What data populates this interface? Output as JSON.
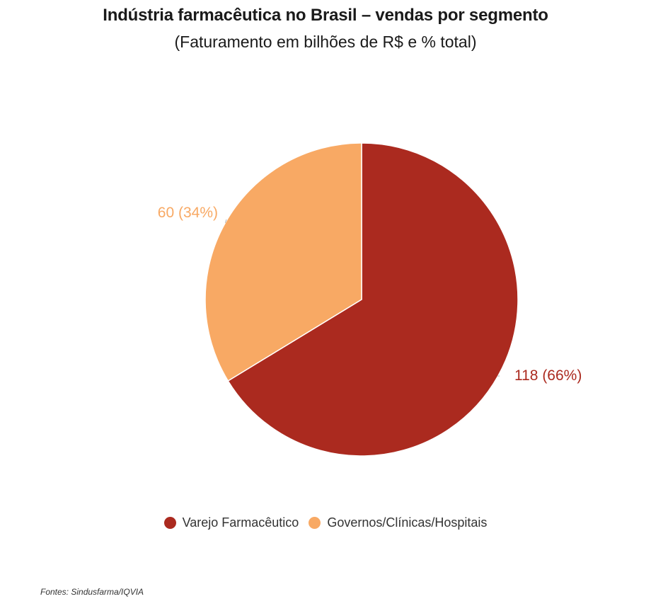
{
  "chart_data": {
    "type": "pie",
    "title": "Indústria farmacêutica no Brasil – vendas por segmento",
    "subtitle": "(Faturamento em bilhões de R$ e % total)",
    "legend_position": "bottom",
    "slices": [
      {
        "name": "Varejo Farmacêutico",
        "value": 118,
        "percent": 66,
        "label": "118 (66%)",
        "color": "#ab2a1f"
      },
      {
        "name": "Governos/Clínicas/Hospitais",
        "value": 60,
        "percent": 34,
        "label": "60 (34%)",
        "color": "#f8a964"
      }
    ]
  },
  "source": "Fontes: Sindusfarma/IQVIA"
}
